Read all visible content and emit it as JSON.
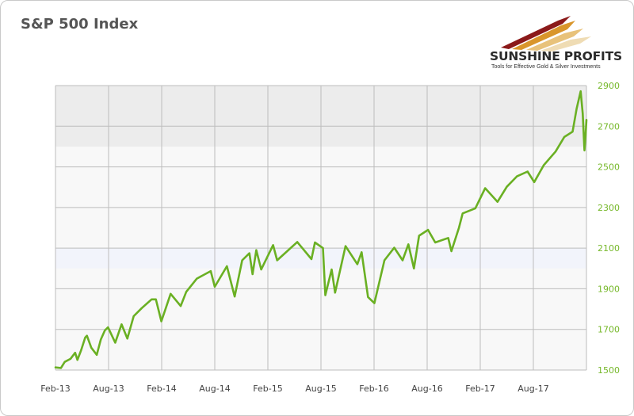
{
  "brand": {
    "name": "SUNSHINE PROFITS",
    "tagline": "Tools for Effective Gold & Silver Investments"
  },
  "colors": {
    "line": "#6ab023",
    "y_tick_text": "#76b82a",
    "grid": "#bdbdbd"
  },
  "chart_data": {
    "type": "line",
    "title": "S&P 500 Index",
    "xlabel": "",
    "ylabel": "",
    "x_tick_labels": [
      "Feb-13",
      "Aug-13",
      "Feb-14",
      "Aug-14",
      "Feb-15",
      "Aug-15",
      "Feb-16",
      "Aug-16",
      "Feb-17",
      "Aug-17"
    ],
    "y_ticks": [
      1500,
      1700,
      1900,
      2100,
      2300,
      2500,
      2700,
      2900
    ],
    "ylim": [
      1500,
      2900
    ],
    "xlim": [
      "2013-02-01",
      "2018-02-15"
    ],
    "y_axis_side": "right",
    "grid": true,
    "legend": "none",
    "series": [
      {
        "points": [
          [
            "2013-02-01",
            1513
          ],
          [
            "2013-02-20",
            1510
          ],
          [
            "2013-03-05",
            1540
          ],
          [
            "2013-03-25",
            1555
          ],
          [
            "2013-04-10",
            1585
          ],
          [
            "2013-04-18",
            1550
          ],
          [
            "2013-05-01",
            1598
          ],
          [
            "2013-05-15",
            1660
          ],
          [
            "2013-05-21",
            1669
          ],
          [
            "2013-06-05",
            1610
          ],
          [
            "2013-06-24",
            1575
          ],
          [
            "2013-07-08",
            1650
          ],
          [
            "2013-07-22",
            1695
          ],
          [
            "2013-08-02",
            1710
          ],
          [
            "2013-08-27",
            1635
          ],
          [
            "2013-09-18",
            1725
          ],
          [
            "2013-10-08",
            1655
          ],
          [
            "2013-10-30",
            1765
          ],
          [
            "2013-11-27",
            1805
          ],
          [
            "2013-12-31",
            1848
          ],
          [
            "2014-01-15",
            1848
          ],
          [
            "2014-02-03",
            1740
          ],
          [
            "2014-03-07",
            1875
          ],
          [
            "2014-04-11",
            1815
          ],
          [
            "2014-04-30",
            1885
          ],
          [
            "2014-06-06",
            1950
          ],
          [
            "2014-07-24",
            1987
          ],
          [
            "2014-08-07",
            1910
          ],
          [
            "2014-09-18",
            2011
          ],
          [
            "2014-10-15",
            1862
          ],
          [
            "2014-11-10",
            2040
          ],
          [
            "2014-12-05",
            2075
          ],
          [
            "2014-12-16",
            1972
          ],
          [
            "2014-12-29",
            2090
          ],
          [
            "2015-01-15",
            1995
          ],
          [
            "2015-02-25",
            2115
          ],
          [
            "2015-03-11",
            2040
          ],
          [
            "2015-05-20",
            2130
          ],
          [
            "2015-07-08",
            2046
          ],
          [
            "2015-07-20",
            2128
          ],
          [
            "2015-08-17",
            2100
          ],
          [
            "2015-08-25",
            1868
          ],
          [
            "2015-09-16",
            1995
          ],
          [
            "2015-09-28",
            1881
          ],
          [
            "2015-11-03",
            2110
          ],
          [
            "2015-12-14",
            2021
          ],
          [
            "2015-12-29",
            2080
          ],
          [
            "2016-01-20",
            1859
          ],
          [
            "2016-02-11",
            1829
          ],
          [
            "2016-03-17",
            2040
          ],
          [
            "2016-04-20",
            2102
          ],
          [
            "2016-05-19",
            2040
          ],
          [
            "2016-06-08",
            2119
          ],
          [
            "2016-06-27",
            2000
          ],
          [
            "2016-07-15",
            2161
          ],
          [
            "2016-08-15",
            2190
          ],
          [
            "2016-09-09",
            2128
          ],
          [
            "2016-10-24",
            2150
          ],
          [
            "2016-11-04",
            2085
          ],
          [
            "2016-11-30",
            2200
          ],
          [
            "2016-12-13",
            2271
          ],
          [
            "2017-01-26",
            2296
          ],
          [
            "2017-03-01",
            2395
          ],
          [
            "2017-04-13",
            2328
          ],
          [
            "2017-05-15",
            2402
          ],
          [
            "2017-06-19",
            2453
          ],
          [
            "2017-07-26",
            2477
          ],
          [
            "2017-08-18",
            2425
          ],
          [
            "2017-09-20",
            2508
          ],
          [
            "2017-10-31",
            2575
          ],
          [
            "2017-11-30",
            2647
          ],
          [
            "2017-12-29",
            2673
          ],
          [
            "2018-01-12",
            2786
          ],
          [
            "2018-01-26",
            2872
          ],
          [
            "2018-02-02",
            2762
          ],
          [
            "2018-02-08",
            2581
          ],
          [
            "2018-02-12",
            2656
          ],
          [
            "2018-02-15",
            2731
          ]
        ]
      }
    ]
  }
}
